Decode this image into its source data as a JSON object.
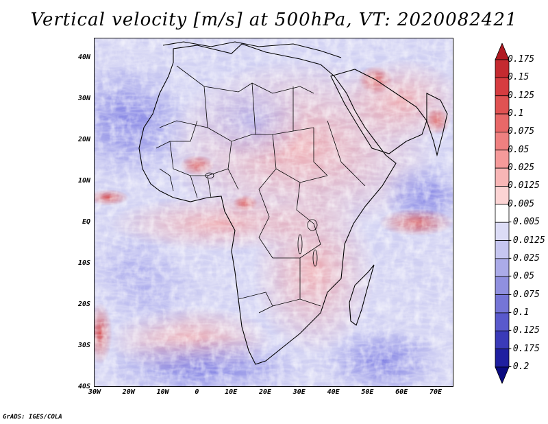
{
  "title": "Vertical velocity [m/s] at 500hPa, VT: 2020082421",
  "footer": "GrADS: IGES/COLA",
  "latitude_labels": [
    "40N",
    "30N",
    "20N",
    "10N",
    "EQ",
    "10S",
    "20S",
    "30S",
    "40S"
  ],
  "longitude_labels": [
    "30W",
    "20W",
    "10W",
    "0",
    "10E",
    "20E",
    "30E",
    "40E",
    "50E",
    "60E",
    "70E"
  ],
  "colorbar": {
    "labels": [
      "0.175",
      "0.15",
      "0.125",
      "0.1",
      "0.075",
      "0.05",
      "0.025",
      "0.0125",
      "0.005",
      "-0.005",
      "-0.0125",
      "-0.025",
      "-0.05",
      "-0.075",
      "-0.1",
      "-0.125",
      "-0.175",
      "-0.2"
    ],
    "colors": [
      "#b01a22",
      "#c42a30",
      "#d63c40",
      "#e05252",
      "#e86868",
      "#ef8080",
      "#f59a9a",
      "#f8b6b6",
      "#fcd4d4",
      "#ffffff",
      "#dcdcf6",
      "#c6c6f0",
      "#ababe8",
      "#9090df",
      "#7575d6",
      "#5959cc",
      "#3a3ab8",
      "#1f1fa0",
      "#0a0a80"
    ]
  }
}
